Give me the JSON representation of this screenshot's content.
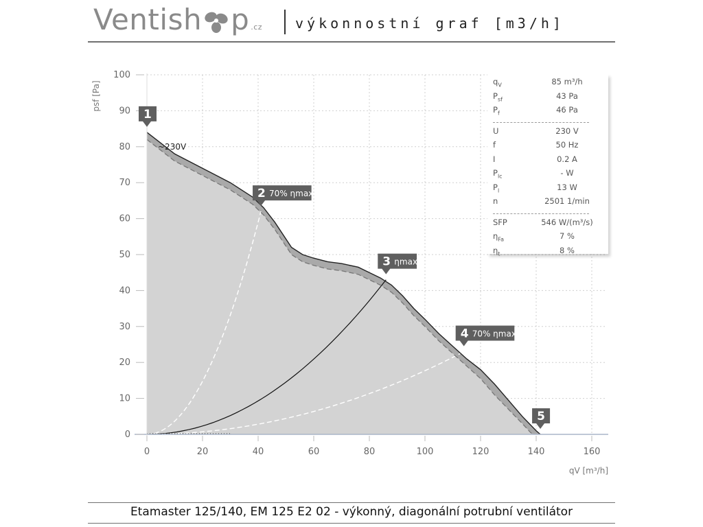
{
  "header": {
    "logo_text_left": "Ventish",
    "logo_text_right": "p",
    "logo_tld": ".cz",
    "title": "výkonnostní graf [m3/h]"
  },
  "footer": {
    "caption": "Etamaster 125/140, EM 125 E2 02 - výkonný, diagonální potrubní ventilátor"
  },
  "info_panel": {
    "groups": [
      [
        {
          "symbol": "q",
          "sub": "V",
          "value": "85 m³/h"
        },
        {
          "symbol": "P",
          "sub": "sf",
          "value": "43 Pa"
        },
        {
          "symbol": "P",
          "sub": "f",
          "value": "46 Pa"
        }
      ],
      [
        {
          "symbol": "U",
          "sub": "",
          "value": "230 V"
        },
        {
          "symbol": "f",
          "sub": "",
          "value": "50 Hz"
        },
        {
          "symbol": "I",
          "sub": "",
          "value": "0.2 A"
        },
        {
          "symbol": "P",
          "sub": "lc",
          "value": "- W"
        },
        {
          "symbol": "P",
          "sub": "l",
          "value": "13 W"
        },
        {
          "symbol": "n",
          "sub": "",
          "value": "2501 1/min"
        }
      ],
      [
        {
          "symbol": "SFP",
          "sub": "",
          "value": "546 W/(m³/s)"
        },
        {
          "symbol": "η",
          "sub": "Fa",
          "value": "7 %"
        },
        {
          "symbol": "η",
          "sub": "t",
          "value": "8 %"
        }
      ]
    ]
  },
  "chart_data": {
    "type": "area",
    "xlabel": "qV [m³/h]",
    "ylabel": "psf [Pa]",
    "xlim": [
      0,
      160
    ],
    "ylim": [
      0,
      100
    ],
    "xticks": [
      0,
      20,
      40,
      60,
      80,
      100,
      120,
      140,
      160
    ],
    "yticks": [
      0,
      10,
      20,
      30,
      40,
      50,
      60,
      70,
      80,
      90,
      100
    ],
    "grid": true,
    "colors": {
      "fill": "#d3d3d3",
      "band": "#a9a9a9",
      "curve": "#222222",
      "dashed": "#777777",
      "system_line": "#ffffff",
      "label_box": "#5f5f5f",
      "grid": "#cfcfcf"
    },
    "series": [
      {
        "name": "~230V",
        "role": "total_pressure",
        "x": [
          0,
          10,
          20,
          30,
          38,
          42,
          46,
          52,
          56,
          60,
          65,
          70,
          76,
          80,
          84,
          88,
          92,
          96,
          100,
          105,
          110,
          115,
          120,
          125,
          130,
          135,
          140,
          141.5
        ],
        "y": [
          84,
          78,
          74,
          70,
          66,
          63,
          59,
          52,
          50,
          49,
          48,
          47.5,
          46.5,
          45,
          43.5,
          41.5,
          38.5,
          35,
          32,
          28,
          24.5,
          21,
          18,
          14,
          9.5,
          5,
          1,
          0
        ]
      },
      {
        "name": "",
        "role": "static_pressure_dashed",
        "x": [
          0,
          10,
          20,
          30,
          38,
          42,
          46,
          52,
          56,
          60,
          65,
          70,
          76,
          80,
          84,
          88,
          92,
          96,
          100,
          105,
          110,
          115,
          120,
          125,
          130,
          135,
          138,
          139
        ],
        "y": [
          82,
          76,
          72,
          68,
          64,
          61,
          57,
          50,
          48,
          47,
          46,
          45.5,
          44.5,
          43,
          41.5,
          39.5,
          36.5,
          33,
          30,
          26,
          22.5,
          19,
          15.5,
          11,
          7,
          3,
          0.5,
          0
        ]
      }
    ],
    "system_curves": [
      {
        "name": "2",
        "style": "dashed-white",
        "x_end": 41,
        "y_end": 62
      },
      {
        "name": "3",
        "style": "solid-black",
        "x_end": 86,
        "y_end": 43
      },
      {
        "name": "4",
        "style": "dashed-white",
        "x_end": 114,
        "y_end": 23
      }
    ],
    "points": [
      {
        "label": "1",
        "tag": "",
        "x": 0,
        "y": 84
      },
      {
        "label": "2",
        "tag": "70% ηmax",
        "x": 41,
        "y": 62
      },
      {
        "label": "3",
        "tag": "ηmax",
        "x": 86,
        "y": 43
      },
      {
        "label": "4",
        "tag": "70% ηmax",
        "x": 114,
        "y": 23
      },
      {
        "label": "5",
        "tag": "",
        "x": 141.5,
        "y": 0
      }
    ]
  }
}
